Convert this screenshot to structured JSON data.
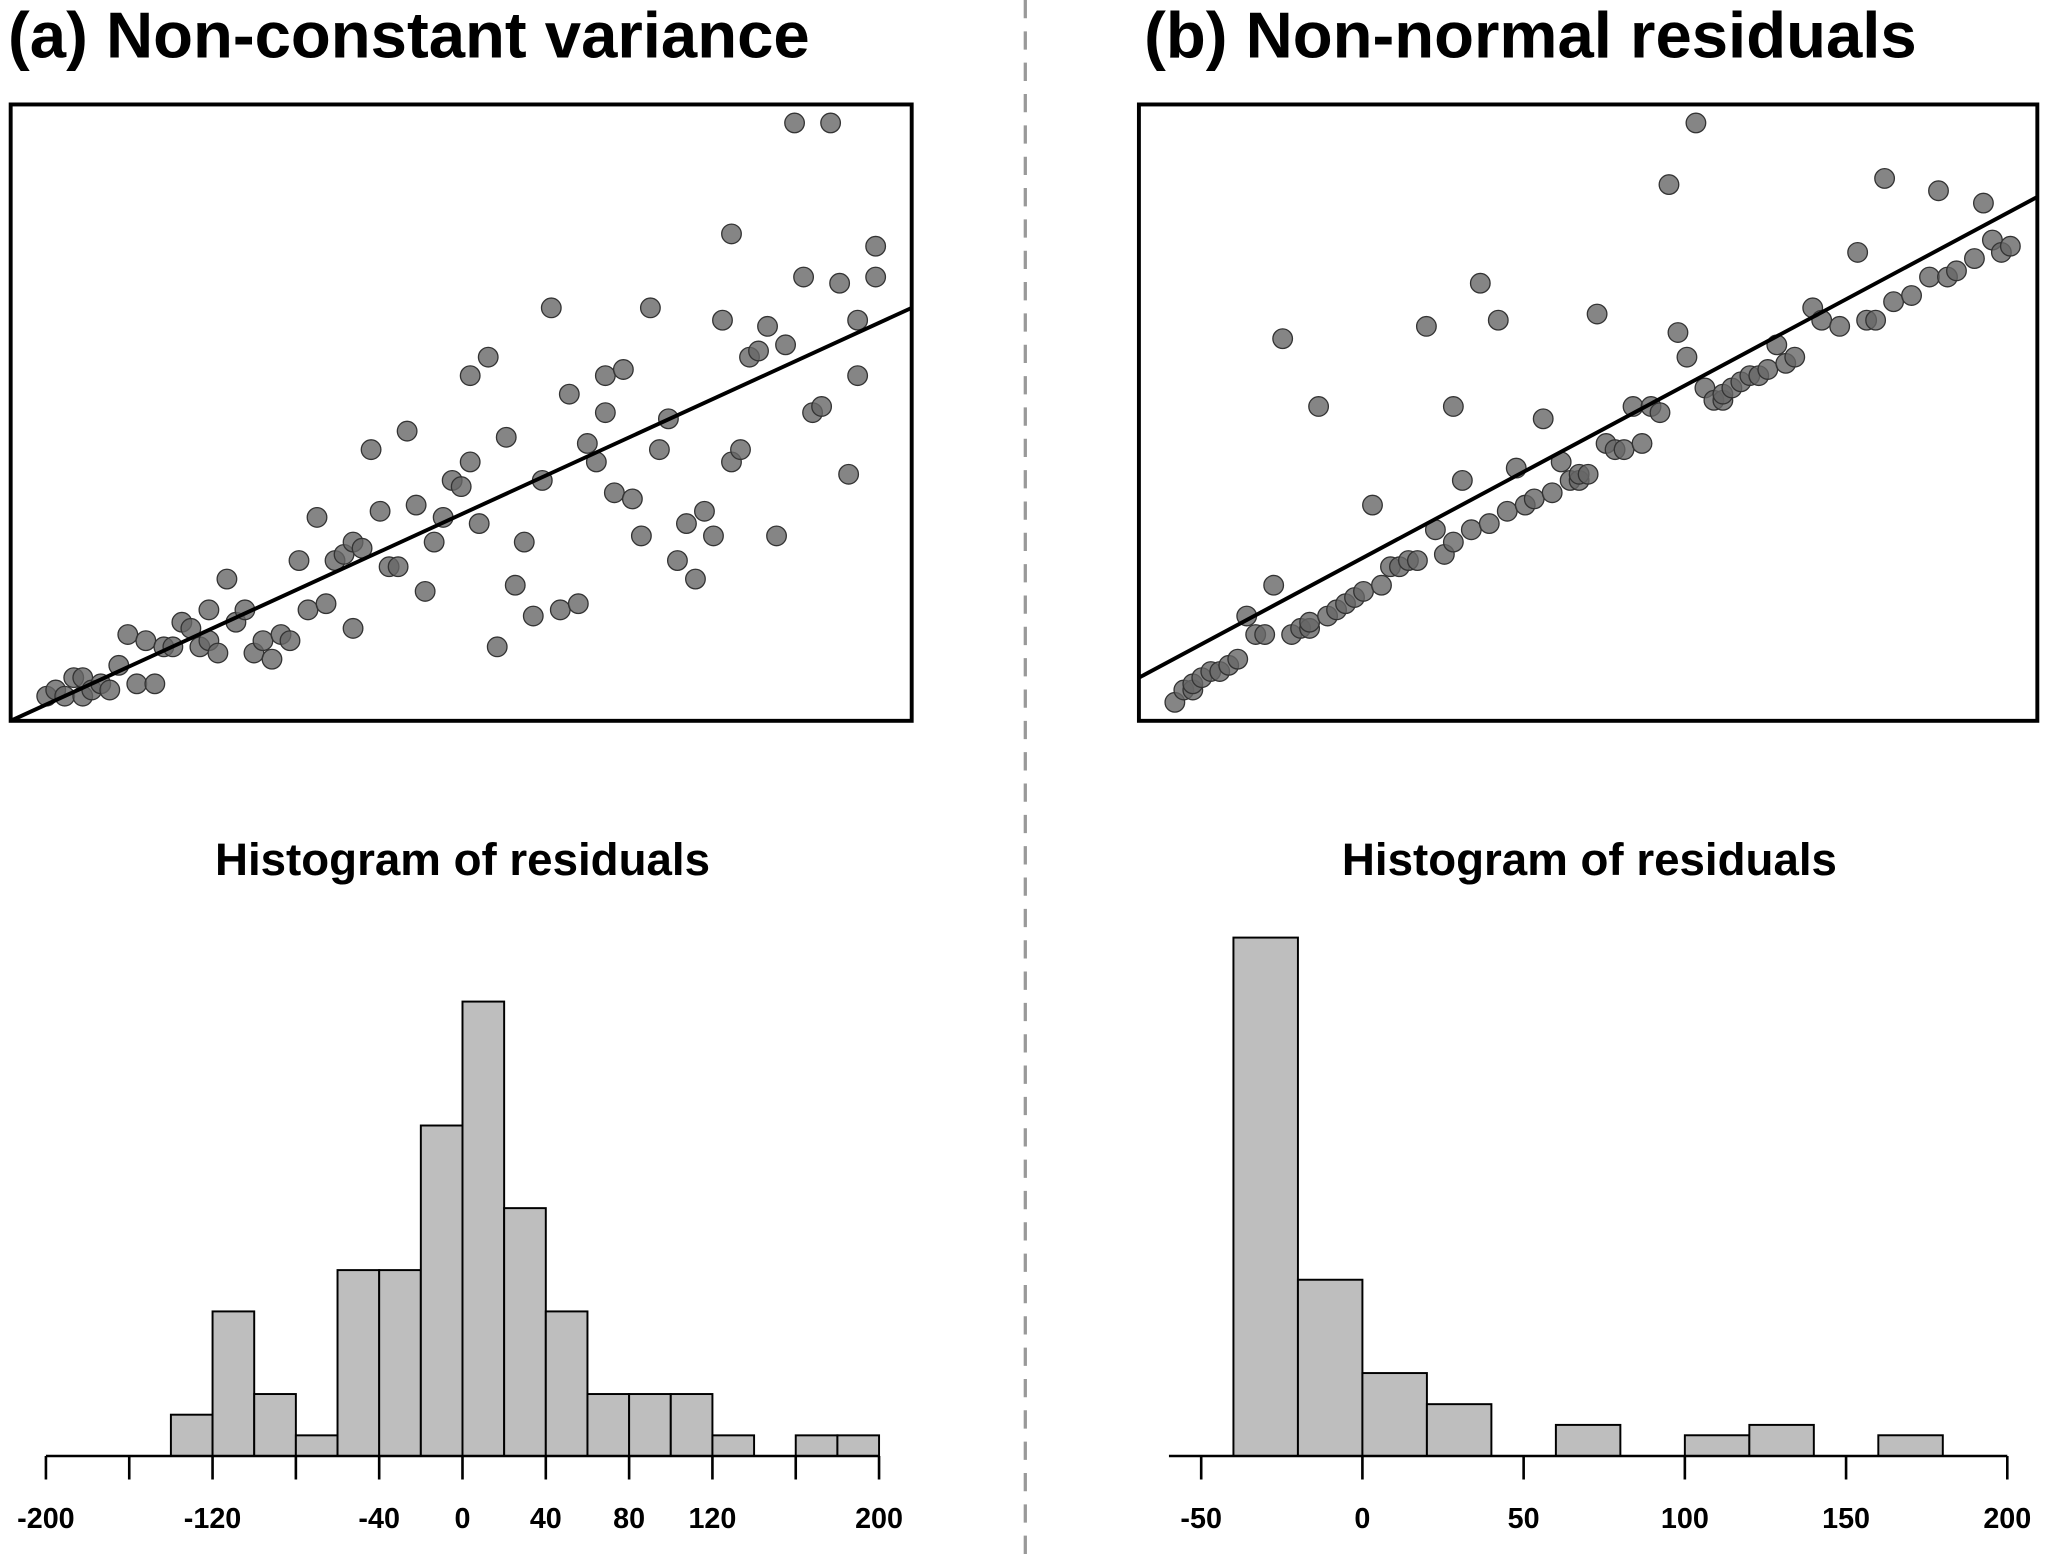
{
  "chart_data": [
    {
      "type": "scatter",
      "title": "(a) Non-constant variance",
      "color": "#666666",
      "xlim": [
        0,
        100
      ],
      "ylim": [
        0,
        100
      ],
      "x": [
        4,
        5,
        6,
        7,
        8,
        8,
        9,
        10,
        11,
        12,
        13,
        14,
        15,
        16,
        17,
        18,
        19,
        20,
        21,
        22,
        22,
        23,
        24,
        25,
        26,
        27,
        28,
        29,
        30,
        31,
        32,
        33,
        34,
        35,
        36,
        37,
        38,
        38,
        39,
        40,
        41,
        42,
        43,
        44,
        45,
        46,
        47,
        48,
        49,
        50,
        51,
        51,
        52,
        53,
        54,
        55,
        56,
        57,
        58,
        59,
        60,
        61,
        62,
        63,
        64,
        65,
        66,
        66,
        67,
        68,
        69,
        70,
        71,
        72,
        73,
        74,
        75,
        76,
        77,
        78,
        79,
        80,
        80,
        81,
        82,
        83,
        84,
        85,
        86,
        87,
        88,
        89,
        90,
        91,
        92,
        93,
        94,
        94,
        96,
        96
      ],
      "values": [
        4,
        5,
        4,
        7,
        4,
        7,
        5,
        6,
        5,
        9,
        14,
        6,
        13,
        6,
        12,
        12,
        16,
        15,
        12,
        18,
        13,
        11,
        23,
        16,
        18,
        11,
        13,
        10,
        14,
        13,
        26,
        18,
        33,
        19,
        26,
        27,
        29,
        15,
        28,
        44,
        34,
        25,
        25,
        47,
        35,
        21,
        29,
        33,
        39,
        38,
        42,
        56,
        32,
        59,
        12,
        46,
        22,
        29,
        17,
        39,
        67,
        18,
        53,
        19,
        45,
        42,
        56,
        50,
        37,
        57,
        36,
        30,
        67,
        44,
        49,
        26,
        32,
        23,
        34,
        30,
        65,
        42,
        79,
        44,
        59,
        60,
        64,
        30,
        61,
        97,
        72,
        50,
        51,
        97,
        71,
        40,
        56,
        65,
        77,
        72
      ],
      "fit_line": {
        "x": [
          0,
          100
        ],
        "values": [
          0,
          67
        ]
      }
    },
    {
      "type": "scatter",
      "title": "(b) Non-normal residuals",
      "color": "#666666",
      "xlim": [
        0,
        100
      ],
      "ylim": [
        0,
        100
      ],
      "x": [
        4,
        5,
        6,
        6,
        7,
        8,
        9,
        10,
        11,
        12,
        13,
        14,
        15,
        16,
        17,
        18,
        19,
        19,
        20,
        21,
        22,
        23,
        24,
        25,
        26,
        27,
        28,
        29,
        30,
        31,
        32,
        33,
        34,
        35,
        35,
        36,
        37,
        38,
        39,
        40,
        41,
        42,
        43,
        44,
        45,
        46,
        47,
        48,
        49,
        49,
        50,
        51,
        52,
        53,
        54,
        55,
        56,
        57,
        58,
        59,
        60,
        61,
        62,
        63,
        64,
        65,
        65,
        66,
        67,
        68,
        69,
        70,
        71,
        72,
        73,
        75,
        76,
        78,
        80,
        81,
        82,
        83,
        84,
        86,
        88,
        89,
        90,
        91,
        93,
        94,
        95,
        96,
        97
      ],
      "values": [
        3,
        5,
        5,
        6,
        7,
        8,
        8,
        9,
        10,
        17,
        14,
        14,
        22,
        62,
        14,
        15,
        15,
        16,
        51,
        17,
        18,
        19,
        20,
        21,
        35,
        22,
        25,
        25,
        26,
        26,
        64,
        31,
        27,
        51,
        29,
        39,
        31,
        71,
        32,
        65,
        34,
        41,
        35,
        36,
        49,
        37,
        42,
        39,
        39,
        40,
        40,
        66,
        45,
        44,
        44,
        51,
        45,
        51,
        50,
        87,
        63,
        59,
        97,
        54,
        52,
        52,
        53,
        54,
        55,
        56,
        56,
        57,
        61,
        58,
        59,
        67,
        65,
        64,
        76,
        65,
        65,
        88,
        68,
        69,
        72,
        86,
        72,
        73,
        75,
        84,
        78,
        76,
        77
      ],
      "fit_line": {
        "x": [
          0,
          100
        ],
        "values": [
          7,
          85
        ]
      }
    },
    {
      "type": "histogram",
      "title": "Histogram of residuals",
      "color": "#bebebe",
      "bins": [
        -200,
        -180,
        -160,
        -140,
        -120,
        -100,
        -80,
        -60,
        -40,
        -20,
        0,
        20,
        40,
        60,
        80,
        100,
        120,
        140,
        160,
        180,
        200
      ],
      "values": [
        0,
        0,
        0,
        2,
        7,
        3,
        1,
        9,
        9,
        16,
        22,
        12,
        7,
        3,
        3,
        3,
        1,
        0,
        1,
        1
      ],
      "xlim": [
        -200,
        200
      ],
      "xticks": [
        -200,
        {
          "value": -160,
          "label": null
        },
        -120,
        {
          "value": -80,
          "label": null
        },
        -40,
        0,
        40,
        80,
        120,
        {
          "value": 160,
          "label": null
        },
        200
      ]
    },
    {
      "type": "histogram",
      "title": "Histogram of residuals",
      "color": "#bebebe",
      "bins": [
        -60,
        -40,
        -20,
        0,
        20,
        40,
        60,
        80,
        100,
        120,
        140,
        160,
        180,
        200
      ],
      "values": [
        0,
        50,
        17,
        8,
        5,
        0,
        3,
        0,
        2,
        3,
        0,
        2,
        0
      ],
      "xlim": [
        -60,
        200
      ],
      "xticks": [
        -50,
        0,
        50,
        100,
        150,
        200
      ]
    }
  ]
}
